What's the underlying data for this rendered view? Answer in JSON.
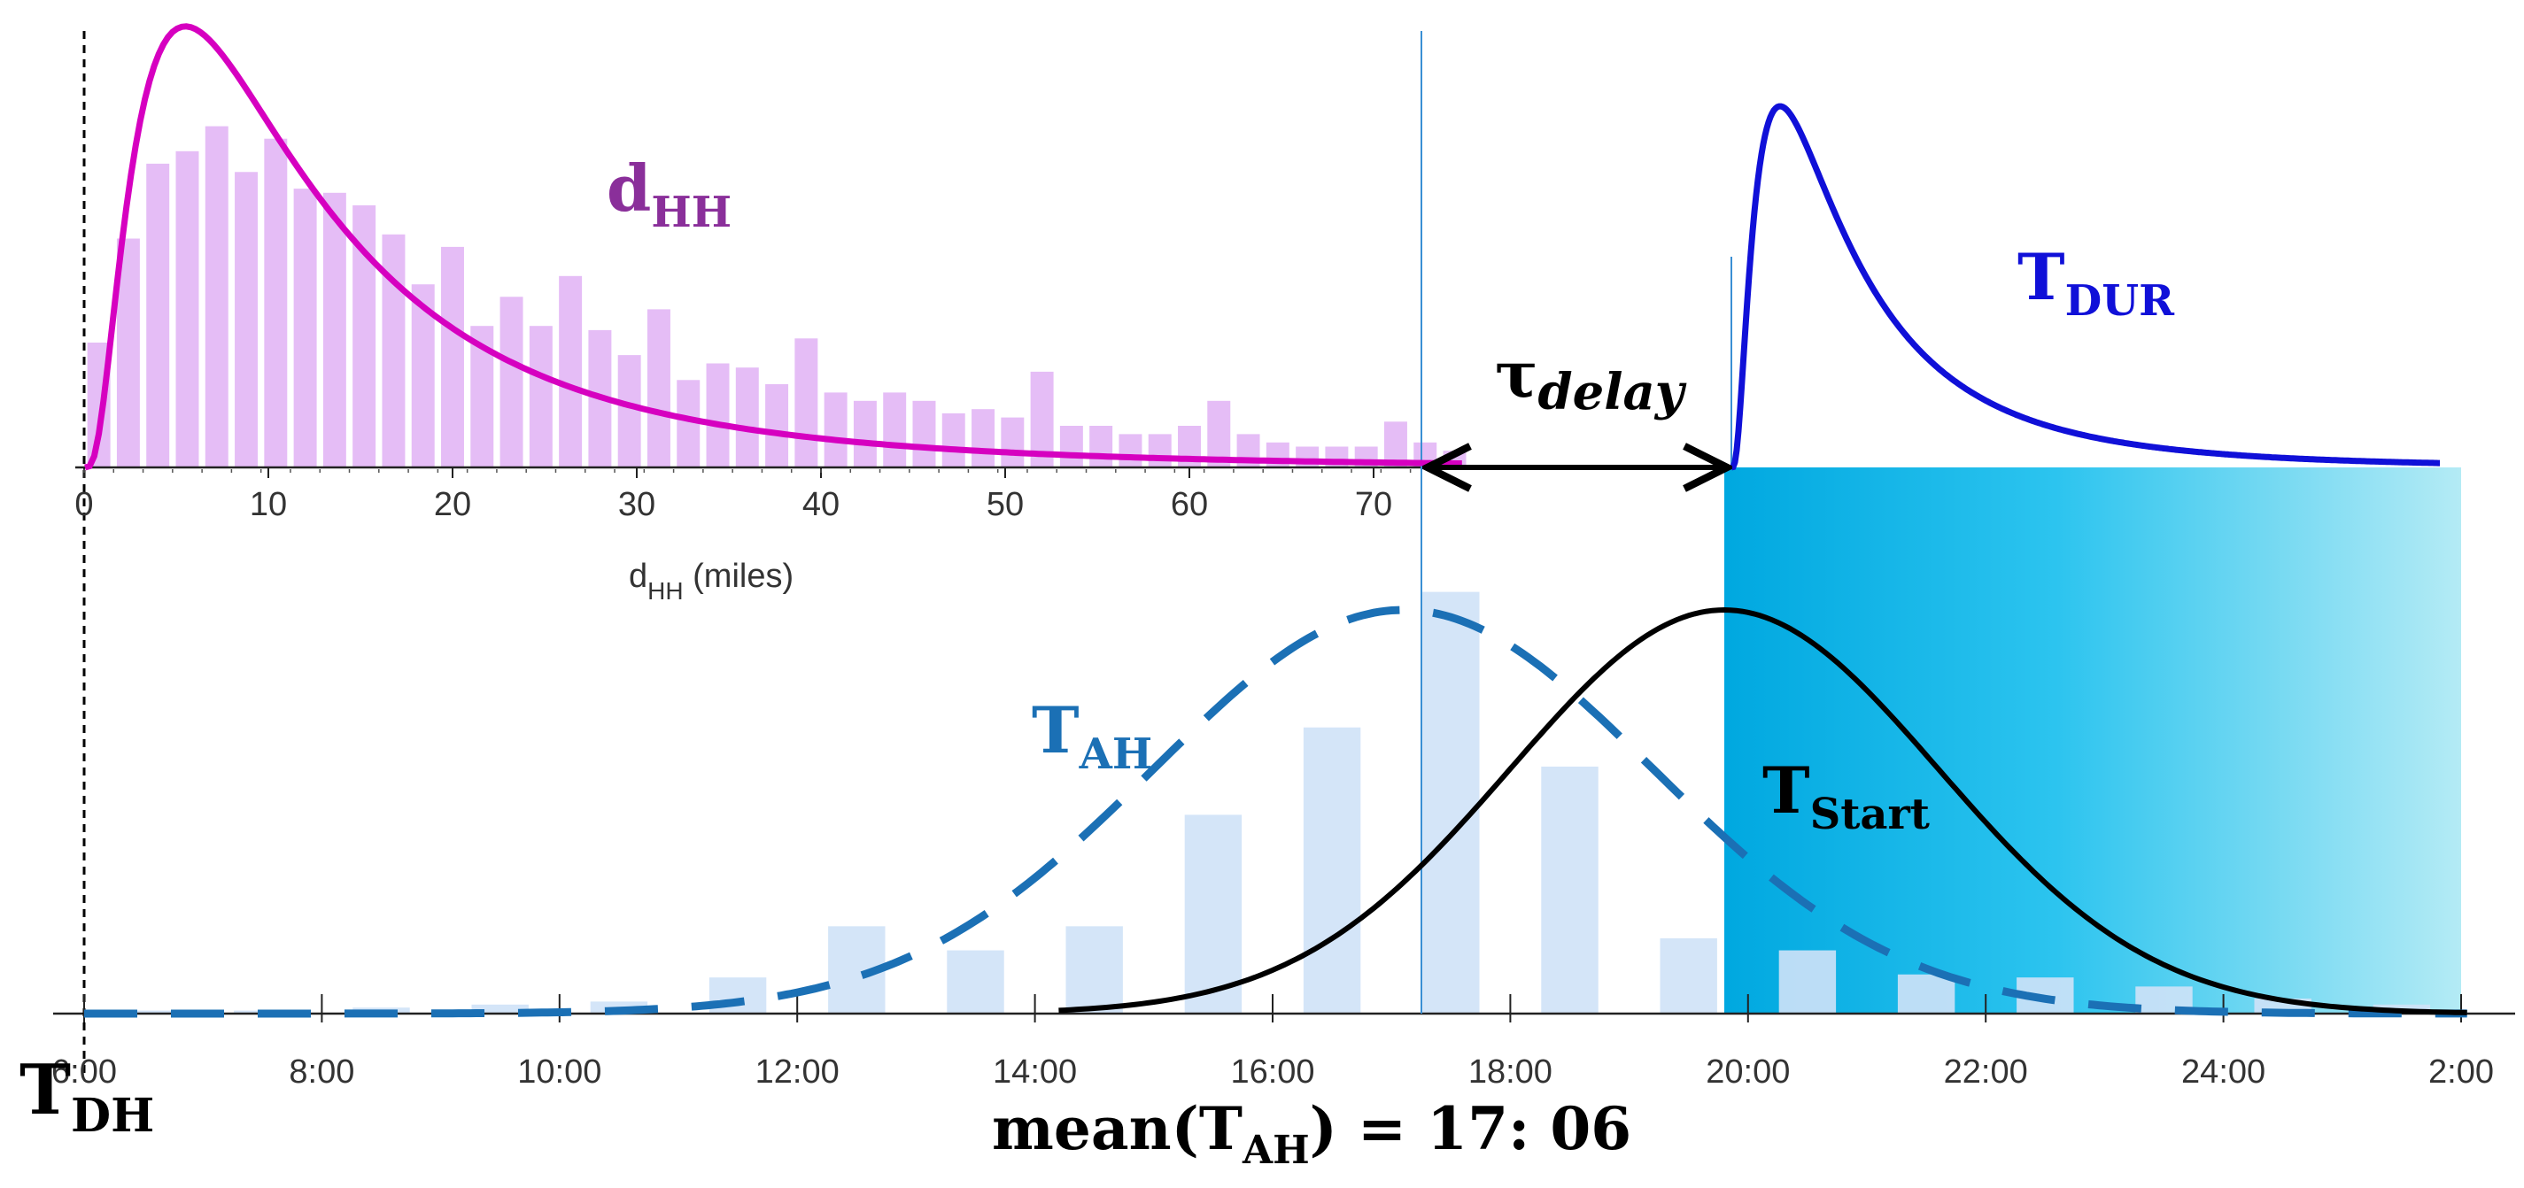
{
  "chart_data": [
    {
      "id": "dHH",
      "type": "bar",
      "title": "",
      "xlabel": "d",
      "xlabel_sub": "HH",
      "xlabel_suffix": " (miles)",
      "ylabel": "",
      "xlim": [
        0,
        75
      ],
      "x_ticks": [
        "0",
        "10",
        "20",
        "30",
        "40",
        "50",
        "60",
        "70"
      ],
      "bin_width": 1.6,
      "bin_centers": [
        0.8,
        2.4,
        4.0,
        5.6,
        7.2,
        8.8,
        10.4,
        12.0,
        13.6,
        15.2,
        16.8,
        18.4,
        20.0,
        21.6,
        23.2,
        24.8,
        26.4,
        28.0,
        29.6,
        31.2,
        32.8,
        34.4,
        36.0,
        37.6,
        39.2,
        40.8,
        42.4,
        44.0,
        45.6,
        47.2,
        48.8,
        50.4,
        52.0,
        53.6,
        55.2,
        56.8,
        58.4,
        60.0,
        61.6,
        63.2,
        64.8,
        66.4,
        68.0,
        69.6,
        71.2,
        72.8,
        74.4
      ],
      "values": [
        0.3,
        0.55,
        0.73,
        0.76,
        0.82,
        0.71,
        0.79,
        0.67,
        0.66,
        0.63,
        0.56,
        0.44,
        0.53,
        0.34,
        0.41,
        0.34,
        0.46,
        0.33,
        0.27,
        0.38,
        0.21,
        0.25,
        0.24,
        0.2,
        0.31,
        0.18,
        0.16,
        0.18,
        0.16,
        0.13,
        0.14,
        0.12,
        0.23,
        0.1,
        0.1,
        0.08,
        0.08,
        0.1,
        0.16,
        0.08,
        0.06,
        0.05,
        0.05,
        0.05,
        0.11,
        0.06,
        0.04
      ],
      "fit": {
        "name": "d",
        "name_sub": "HH",
        "distribution": "lognormal",
        "mode": 5.5,
        "peak": 1.0,
        "color": "#d600c0"
      },
      "bar_color": "#e4b9f5",
      "label_color": "#8a2f9a"
    },
    {
      "id": "time_of_day",
      "type": "bar",
      "title": "",
      "xlabel": "",
      "xlim": [
        6,
        26.1
      ],
      "x_ticks": [
        "6:00",
        "8:00",
        "10:00",
        "12:00",
        "14:00",
        "16:00",
        "18:00",
        "20:00",
        "22:00",
        "24:00",
        "2:00"
      ],
      "x_tick_values": [
        6,
        8,
        10,
        12,
        14,
        16,
        18,
        20,
        22,
        24,
        26
      ],
      "categories": [
        6,
        7,
        8,
        9,
        10,
        11,
        12,
        13,
        14,
        15,
        16,
        17,
        18,
        19,
        20,
        21,
        22,
        23,
        24,
        25
      ],
      "bar_centers": [
        6.5,
        7.5,
        8.5,
        9.5,
        10.5,
        11.5,
        12.5,
        13.5,
        14.5,
        15.5,
        16.5,
        17.5,
        18.5,
        19.5,
        20.5,
        21.5,
        22.5,
        23.5,
        24.5,
        25.5
      ],
      "values": [
        0.5,
        0.5,
        1.0,
        1.5,
        2.0,
        6.0,
        14.5,
        10.5,
        14.5,
        33.0,
        47.5,
        70.0,
        41.0,
        12.5,
        10.5,
        6.5,
        6.0,
        4.5,
        2.5,
        1.5
      ],
      "ylim": [
        0,
        72
      ],
      "bar_color": "#cfe2f7",
      "series": [
        {
          "name": "T",
          "name_sub": "AH",
          "distribution": "normal",
          "mean": 17.1,
          "sd": 2.1,
          "peak": 67.0,
          "style": "dashed",
          "color": "#1b70b5"
        },
        {
          "name": "T",
          "name_sub": "Start",
          "distribution": "normal",
          "mean": 19.8,
          "sd": 1.8,
          "peak": 67.0,
          "start": 14.2,
          "end": 26.1,
          "style": "solid",
          "color": "#000000"
        }
      ],
      "shaded_region": {
        "from": 19.8,
        "to": 26.0,
        "color_start": "#00a8e0",
        "color_end": "#b4ebf5"
      }
    },
    {
      "id": "TDUR",
      "type": "line",
      "series": [
        {
          "name": "T",
          "name_sub": "DUR",
          "distribution": "lognormal",
          "color": "#1010d8"
        }
      ]
    }
  ],
  "annotations": {
    "delay": {
      "symbol": "τ",
      "sub": "delay"
    },
    "tdh": {
      "main": "T",
      "sub": "DH"
    },
    "mean": {
      "prefix": "mean(",
      "main": "T",
      "sub": "AH",
      "suffix": ") = 17: 06"
    },
    "reference_time": "17:06"
  },
  "colors": {
    "tah": "#1b70b5",
    "dhh": "#8a2f9a",
    "tdur": "#1010d8",
    "arrow": "#000000"
  }
}
